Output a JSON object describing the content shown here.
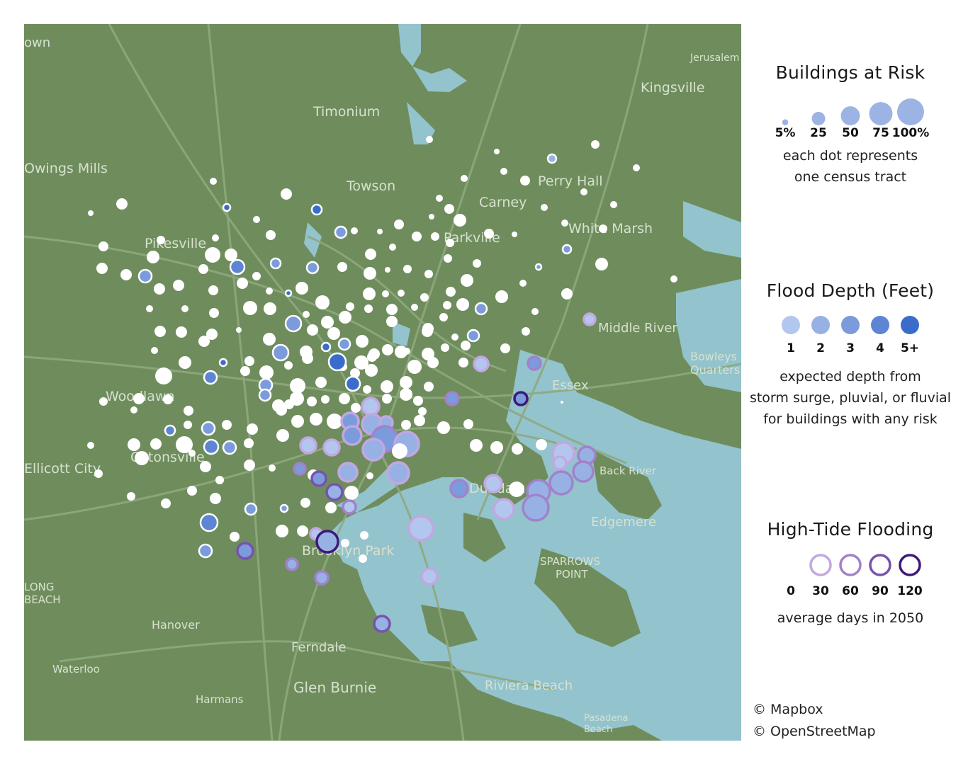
{
  "map": {
    "place_labels": [
      {
        "id": "own",
        "text": "own"
      },
      {
        "id": "jerusalem",
        "text": "Jerusalem"
      },
      {
        "id": "kingsville",
        "text": "Kingsville"
      },
      {
        "id": "timonium",
        "text": "Timonium"
      },
      {
        "id": "owings-mills",
        "text": "Owings Mills"
      },
      {
        "id": "towson",
        "text": "Towson"
      },
      {
        "id": "perry-hall",
        "text": "Perry Hall"
      },
      {
        "id": "carney",
        "text": "Carney"
      },
      {
        "id": "pikesville",
        "text": "Pikesville"
      },
      {
        "id": "parkville",
        "text": "Parkville"
      },
      {
        "id": "white-marsh",
        "text": "White Marsh"
      },
      {
        "id": "middle-river",
        "text": "Middle River"
      },
      {
        "id": "bowleys-quarters",
        "text": "Bowleys Quarters"
      },
      {
        "id": "essex",
        "text": "Essex"
      },
      {
        "id": "woodlawn",
        "text": "Woodlawn"
      },
      {
        "id": "catonsville",
        "text": "Catonsville"
      },
      {
        "id": "ellicott-city",
        "text": "Ellicott City"
      },
      {
        "id": "back-river",
        "text": "Back River"
      },
      {
        "id": "dundalk",
        "text": "Dundalk"
      },
      {
        "id": "edgemere",
        "text": "Edgemere"
      },
      {
        "id": "brooklyn-park",
        "text": "Brooklyn Park"
      },
      {
        "id": "sparrows-point",
        "text": "SPARROWS POINT"
      },
      {
        "id": "long-beach",
        "text": "LONG BEACH"
      },
      {
        "id": "hanover",
        "text": "Hanover"
      },
      {
        "id": "ferndale",
        "text": "Ferndale"
      },
      {
        "id": "waterloo",
        "text": "Waterloo"
      },
      {
        "id": "glen-burnie",
        "text": "Glen Burnie"
      },
      {
        "id": "harmans",
        "text": "Harmans"
      },
      {
        "id": "riviera-beach",
        "text": "Riviera Beach"
      },
      {
        "id": "pasadena-beach",
        "text": "Pasadena Beach"
      }
    ],
    "colors": {
      "land": "#6f8d5c",
      "water": "#93c3cd",
      "road": "#8fa97e",
      "tract_default": "#ffffff"
    }
  },
  "legend_buildings": {
    "title": "Buildings at Risk",
    "items": [
      {
        "label": "5%",
        "value": 5
      },
      {
        "label": "25",
        "value": 25
      },
      {
        "label": "50",
        "value": 50
      },
      {
        "label": "75",
        "value": 75
      },
      {
        "label": "100%",
        "value": 100
      }
    ],
    "dot_color": "#9cb4e4",
    "note_line1": "each dot represents",
    "note_line2": "one census tract"
  },
  "legend_depth": {
    "title": "Flood Depth (Feet)",
    "items": [
      {
        "label": "1",
        "color": "#b3c7ee"
      },
      {
        "label": "2",
        "color": "#98b1e4"
      },
      {
        "label": "3",
        "color": "#7c9bdc"
      },
      {
        "label": "4",
        "color": "#5d85d4"
      },
      {
        "label": "5+",
        "color": "#3a6ccb"
      }
    ],
    "note_line1": "expected depth from",
    "note_line2": "storm surge, pluvial, or fluvial",
    "note_line3": "for buildings with any risk"
  },
  "legend_tide": {
    "title": "High-Tide Flooding",
    "items": [
      {
        "label": "0",
        "color": null
      },
      {
        "label": "30",
        "color": "#c3a7e2"
      },
      {
        "label": "60",
        "color": "#a281cb"
      },
      {
        "label": "90",
        "color": "#7652ae"
      },
      {
        "label": "120",
        "color": "#3b1a7a"
      }
    ],
    "note": "average days in 2050"
  },
  "credits": {
    "mapbox": "© Mapbox",
    "osm": "© OpenStreetMap"
  }
}
